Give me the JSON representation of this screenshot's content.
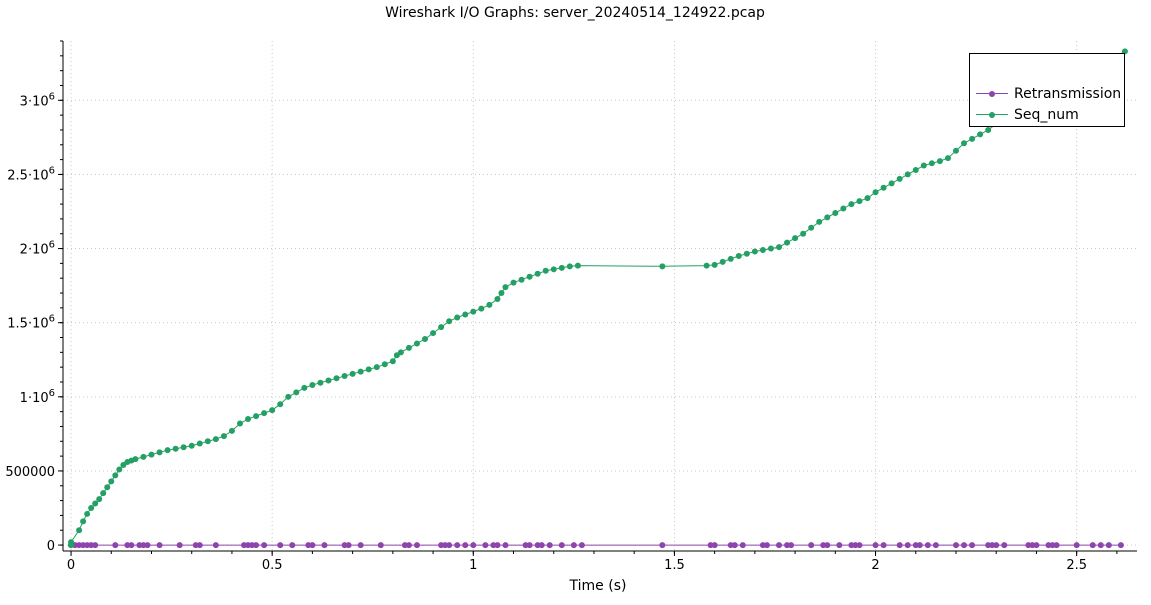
{
  "chart_data": {
    "type": "scatter",
    "title": "Wireshark I/O Graphs: server_20240514_124922.pcap",
    "xlabel": "Time (s)",
    "ylabel": "",
    "xlim": [
      -0.02,
      2.65
    ],
    "ylim": [
      -40000,
      3400000
    ],
    "x_ticks": [
      0,
      0.5,
      1,
      1.5,
      2,
      2.5
    ],
    "x_tick_labels": [
      "0",
      "0.5",
      "1",
      "1.5",
      "2",
      "2.5"
    ],
    "y_ticks": [
      0,
      500000,
      1000000,
      1500000,
      2000000,
      2500000,
      3000000
    ],
    "y_tick_labels": [
      {
        "base": "0",
        "exp": ""
      },
      {
        "base": "500000",
        "exp": ""
      },
      {
        "base": "1·10",
        "exp": "6"
      },
      {
        "base": "1.5·10",
        "exp": "6"
      },
      {
        "base": "2·10",
        "exp": "6"
      },
      {
        "base": "2.5·10",
        "exp": "6"
      },
      {
        "base": "3·10",
        "exp": "6"
      }
    ],
    "grid": true,
    "legend_position": "top-right",
    "series": [
      {
        "name": "Retransmission",
        "color": "#8e44ad",
        "x": [
          0.0,
          0.01,
          0.02,
          0.03,
          0.04,
          0.05,
          0.06,
          0.11,
          0.14,
          0.15,
          0.17,
          0.18,
          0.19,
          0.22,
          0.27,
          0.31,
          0.32,
          0.36,
          0.43,
          0.44,
          0.45,
          0.46,
          0.48,
          0.52,
          0.55,
          0.59,
          0.6,
          0.63,
          0.68,
          0.69,
          0.72,
          0.77,
          0.83,
          0.84,
          0.86,
          0.92,
          0.93,
          0.94,
          0.96,
          0.98,
          1.0,
          1.03,
          1.05,
          1.06,
          1.08,
          1.13,
          1.14,
          1.16,
          1.17,
          1.19,
          1.22,
          1.25,
          1.27,
          1.47,
          1.59,
          1.6,
          1.64,
          1.65,
          1.67,
          1.72,
          1.73,
          1.76,
          1.78,
          1.79,
          1.84,
          1.87,
          1.88,
          1.91,
          1.94,
          1.95,
          1.96,
          2.0,
          2.02,
          2.06,
          2.08,
          2.1,
          2.11,
          2.13,
          2.15,
          2.2,
          2.22,
          2.24,
          2.28,
          2.29,
          2.3,
          2.32,
          2.38,
          2.39,
          2.4,
          2.43,
          2.44,
          2.45,
          2.5,
          2.54,
          2.56,
          2.58,
          2.61
        ],
        "y": [
          0,
          0,
          0,
          0,
          0,
          0,
          0,
          0,
          0,
          0,
          0,
          0,
          0,
          0,
          0,
          0,
          0,
          0,
          0,
          0,
          0,
          0,
          0,
          0,
          0,
          0,
          0,
          0,
          0,
          0,
          0,
          0,
          0,
          0,
          0,
          0,
          0,
          0,
          0,
          0,
          0,
          0,
          0,
          0,
          0,
          0,
          0,
          0,
          0,
          0,
          0,
          0,
          0,
          0,
          0,
          0,
          0,
          0,
          0,
          0,
          0,
          0,
          0,
          0,
          0,
          0,
          0,
          0,
          0,
          0,
          0,
          0,
          0,
          0,
          0,
          0,
          0,
          0,
          0,
          0,
          0,
          0,
          0,
          0,
          0,
          0,
          0,
          0,
          0,
          0,
          0,
          0,
          0,
          0,
          0,
          0,
          0
        ]
      },
      {
        "name": "Seq_num",
        "color": "#24a064",
        "x": [
          0.0,
          0.0,
          0.02,
          0.03,
          0.04,
          0.05,
          0.06,
          0.07,
          0.08,
          0.09,
          0.1,
          0.11,
          0.12,
          0.13,
          0.14,
          0.15,
          0.16,
          0.18,
          0.2,
          0.22,
          0.24,
          0.26,
          0.28,
          0.3,
          0.32,
          0.34,
          0.36,
          0.38,
          0.4,
          0.42,
          0.44,
          0.46,
          0.48,
          0.5,
          0.52,
          0.54,
          0.56,
          0.58,
          0.6,
          0.62,
          0.64,
          0.66,
          0.68,
          0.7,
          0.72,
          0.74,
          0.76,
          0.78,
          0.8,
          0.81,
          0.82,
          0.84,
          0.86,
          0.88,
          0.9,
          0.92,
          0.94,
          0.96,
          0.98,
          1.0,
          1.02,
          1.04,
          1.06,
          1.07,
          1.08,
          1.1,
          1.12,
          1.14,
          1.16,
          1.18,
          1.2,
          1.22,
          1.24,
          1.26,
          1.47,
          1.58,
          1.6,
          1.62,
          1.64,
          1.66,
          1.68,
          1.7,
          1.72,
          1.74,
          1.76,
          1.78,
          1.8,
          1.82,
          1.84,
          1.86,
          1.88,
          1.9,
          1.92,
          1.94,
          1.96,
          1.98,
          2.0,
          2.02,
          2.04,
          2.06,
          2.08,
          2.1,
          2.12,
          2.14,
          2.16,
          2.18,
          2.2,
          2.22,
          2.24,
          2.26,
          2.28,
          2.3,
          2.32,
          2.34,
          2.36,
          2.38,
          2.4,
          2.42,
          2.44,
          2.46,
          2.48,
          2.5,
          2.52,
          2.54,
          2.56,
          2.58,
          2.6,
          2.62
        ],
        "y": [
          0,
          20000,
          100000,
          160000,
          210000,
          250000,
          280000,
          310000,
          350000,
          390000,
          430000,
          470000,
          510000,
          540000,
          560000,
          570000,
          580000,
          595000,
          610000,
          625000,
          640000,
          650000,
          660000,
          670000,
          685000,
          700000,
          715000,
          735000,
          770000,
          820000,
          850000,
          870000,
          890000,
          910000,
          950000,
          1000000,
          1030000,
          1060000,
          1080000,
          1095000,
          1110000,
          1125000,
          1140000,
          1155000,
          1170000,
          1185000,
          1200000,
          1220000,
          1240000,
          1280000,
          1300000,
          1330000,
          1360000,
          1390000,
          1430000,
          1470000,
          1510000,
          1535000,
          1555000,
          1575000,
          1595000,
          1620000,
          1660000,
          1700000,
          1740000,
          1770000,
          1790000,
          1810000,
          1830000,
          1850000,
          1860000,
          1870000,
          1880000,
          1885000,
          1880000,
          1885000,
          1890000,
          1910000,
          1930000,
          1950000,
          1965000,
          1980000,
          1990000,
          2000000,
          2010000,
          2040000,
          2070000,
          2100000,
          2140000,
          2180000,
          2210000,
          2240000,
          2270000,
          2300000,
          2320000,
          2340000,
          2380000,
          2410000,
          2440000,
          2470000,
          2500000,
          2530000,
          2560000,
          2575000,
          2590000,
          2610000,
          2660000,
          2710000,
          2740000,
          2770000,
          2800000,
          2840000,
          2880000,
          2920000,
          2950000,
          2985000,
          3020000,
          3060000,
          3080000,
          3100000,
          3120000,
          3140000,
          3170000,
          3200000,
          3230000,
          3260000,
          3300000,
          3330000
        ]
      }
    ]
  }
}
